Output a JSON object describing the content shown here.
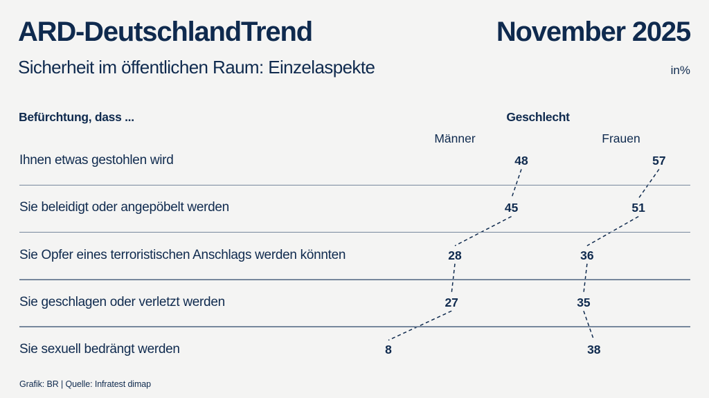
{
  "header": {
    "title": "ARD-DeutschlandTrend",
    "date": "November 2025",
    "subtitle": "Sicherheit im öffentlichen Raum: Einzelaspekte",
    "unit": "in%"
  },
  "table": {
    "row_header": "Befürchtung, dass ...",
    "group_header": "Geschlecht",
    "columns": [
      "Männer",
      "Frauen"
    ]
  },
  "chart_data": {
    "type": "table",
    "title": "Sicherheit im öffentlichen Raum: Einzelaspekte",
    "unit": "in%",
    "group_label": "Geschlecht",
    "categories": [
      "Ihnen etwas gestohlen wird",
      "Sie beleidigt oder angepöbelt werden",
      "Sie Opfer eines terroristischen Anschlags werden könnten",
      "Sie geschlagen oder verletzt werden",
      "Sie sexuell bedrängt werden"
    ],
    "series": [
      {
        "name": "Männer",
        "values": [
          48,
          45,
          28,
          27,
          8
        ]
      },
      {
        "name": "Frauen",
        "values": [
          57,
          51,
          36,
          35,
          38
        ]
      }
    ],
    "layout_hints": {
      "value_position_encodes_value": true,
      "connectors": "dashed lines between consecutive rows per series",
      "grid": "horizontal divider between rows"
    }
  },
  "footer": {
    "credit": "Grafik: BR | Quelle: Infratest dimap"
  },
  "colors": {
    "navy": "#0f2a4e",
    "background": "#f4f4f3",
    "divider": "#76879c"
  }
}
